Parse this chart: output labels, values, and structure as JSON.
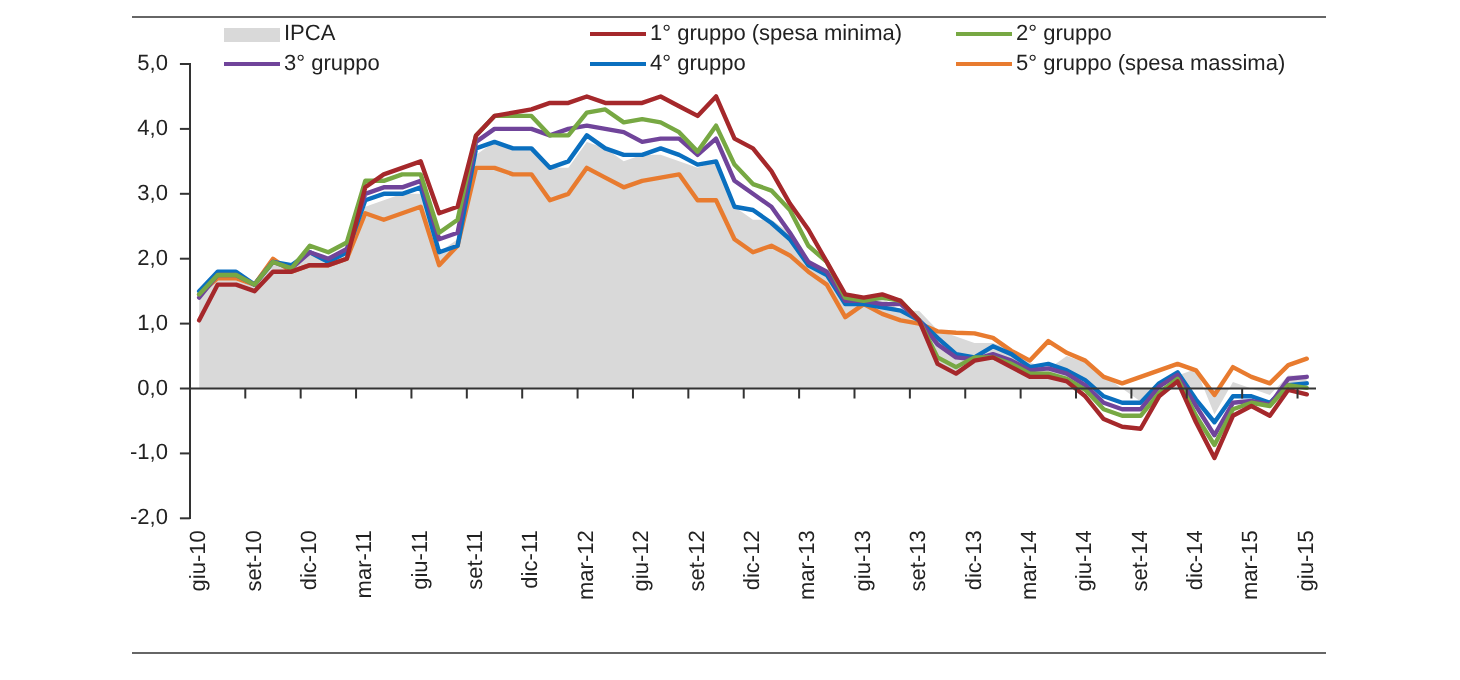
{
  "chart_data": {
    "type": "line",
    "categories": [
      "giu-10",
      null,
      null,
      "set-10",
      null,
      null,
      "dic-10",
      null,
      null,
      "mar-11",
      null,
      null,
      "giu-11",
      null,
      null,
      "set-11",
      null,
      null,
      "dic-11",
      null,
      null,
      "mar-12",
      null,
      null,
      "giu-12",
      null,
      null,
      "set-12",
      null,
      null,
      "dic-12",
      null,
      null,
      "mar-13",
      null,
      null,
      "giu-13",
      null,
      null,
      "set-13",
      null,
      null,
      "dic-13",
      null,
      null,
      "mar-14",
      null,
      null,
      "giu-14",
      null,
      null,
      "set-14",
      null,
      null,
      "dic-14",
      null,
      null,
      "mar-15",
      null,
      null,
      "giu-15"
    ],
    "series": [
      {
        "name": "IPCA",
        "type": "area",
        "color": "#d9d9d9",
        "values": [
          1.5,
          1.7,
          1.7,
          1.6,
          1.9,
          1.9,
          2.1,
          1.9,
          2.1,
          2.8,
          2.9,
          3.0,
          3.0,
          2.1,
          2.3,
          3.6,
          3.8,
          3.7,
          3.7,
          3.4,
          3.4,
          3.8,
          3.7,
          3.5,
          3.6,
          3.6,
          3.5,
          3.4,
          3.5,
          2.8,
          2.6,
          2.6,
          2.4,
          2.0,
          1.8,
          1.3,
          1.3,
          1.4,
          1.2,
          1.2,
          0.9,
          0.8,
          0.7,
          0.7,
          0.6,
          0.4,
          0.3,
          0.5,
          0.4,
          0.2,
          0.0,
          -0.2,
          -0.1,
          0.2,
          0.3,
          -0.4,
          0.1,
          0.0,
          -0.1,
          0.2,
          0.2
        ]
      },
      {
        "name": "1° gruppo (spesa minima)",
        "color": "#a5282b",
        "values": [
          1.05,
          1.6,
          1.6,
          1.5,
          1.8,
          1.8,
          1.9,
          1.9,
          2.0,
          3.1,
          3.3,
          3.4,
          3.5,
          2.7,
          2.8,
          3.9,
          4.2,
          4.25,
          4.3,
          4.4,
          4.4,
          4.5,
          4.4,
          4.4,
          4.4,
          4.5,
          4.35,
          4.2,
          4.5,
          3.85,
          3.7,
          3.35,
          2.85,
          2.45,
          1.95,
          1.45,
          1.4,
          1.45,
          1.35,
          1.05,
          0.38,
          0.23,
          0.43,
          0.48,
          0.33,
          0.18,
          0.18,
          0.11,
          -0.12,
          -0.47,
          -0.59,
          -0.62,
          -0.12,
          0.11,
          -0.52,
          -1.07,
          -0.42,
          -0.27,
          -0.42,
          -0.02,
          -0.09
        ]
      },
      {
        "name": "2° gruppo",
        "color": "#77a843",
        "values": [
          1.45,
          1.75,
          1.75,
          1.6,
          1.95,
          1.85,
          2.2,
          2.1,
          2.25,
          3.2,
          3.2,
          3.3,
          3.3,
          2.4,
          2.6,
          3.9,
          4.2,
          4.2,
          4.2,
          3.9,
          3.9,
          4.25,
          4.3,
          4.1,
          4.15,
          4.1,
          3.95,
          3.65,
          4.05,
          3.45,
          3.15,
          3.05,
          2.75,
          2.2,
          1.95,
          1.4,
          1.35,
          1.4,
          1.35,
          1.05,
          0.48,
          0.33,
          0.48,
          0.48,
          0.38,
          0.23,
          0.23,
          0.15,
          -0.02,
          -0.32,
          -0.42,
          -0.42,
          -0.07,
          0.15,
          -0.42,
          -0.87,
          -0.32,
          -0.22,
          -0.27,
          0.05,
          0.01
        ]
      },
      {
        "name": "3° gruppo",
        "color": "#70449a",
        "values": [
          1.4,
          1.75,
          1.75,
          1.6,
          1.95,
          1.85,
          2.1,
          2.0,
          2.15,
          3.0,
          3.1,
          3.1,
          3.2,
          2.3,
          2.4,
          3.8,
          4.0,
          4.0,
          4.0,
          3.9,
          4.0,
          4.05,
          4.0,
          3.95,
          3.8,
          3.85,
          3.85,
          3.6,
          3.85,
          3.2,
          3.0,
          2.8,
          2.4,
          1.95,
          1.8,
          1.35,
          1.35,
          1.3,
          1.3,
          1.05,
          0.68,
          0.48,
          0.45,
          0.53,
          0.43,
          0.28,
          0.31,
          0.23,
          0.05,
          -0.22,
          -0.32,
          -0.32,
          0.03,
          0.21,
          -0.27,
          -0.72,
          -0.22,
          -0.19,
          -0.25,
          0.15,
          0.18
        ]
      },
      {
        "name": "4° gruppo",
        "color": "#0a6fbf",
        "values": [
          1.5,
          1.8,
          1.8,
          1.6,
          1.95,
          1.9,
          2.1,
          1.95,
          2.1,
          2.9,
          3.0,
          3.0,
          3.1,
          2.1,
          2.2,
          3.7,
          3.8,
          3.7,
          3.7,
          3.4,
          3.5,
          3.9,
          3.7,
          3.6,
          3.6,
          3.7,
          3.6,
          3.45,
          3.5,
          2.8,
          2.75,
          2.55,
          2.3,
          1.9,
          1.75,
          1.3,
          1.3,
          1.25,
          1.2,
          1.05,
          0.78,
          0.53,
          0.48,
          0.65,
          0.53,
          0.33,
          0.38,
          0.28,
          0.13,
          -0.12,
          -0.22,
          -0.22,
          0.08,
          0.25,
          -0.17,
          -0.52,
          -0.12,
          -0.12,
          -0.22,
          0.05,
          0.08
        ]
      },
      {
        "name": "5° gruppo (spesa massima)",
        "color": "#e87b2f",
        "values": [
          1.45,
          1.7,
          1.7,
          1.6,
          2.0,
          1.8,
          1.9,
          1.9,
          2.0,
          2.7,
          2.6,
          2.7,
          2.8,
          1.9,
          2.2,
          3.4,
          3.4,
          3.3,
          3.3,
          2.9,
          3.0,
          3.4,
          3.25,
          3.1,
          3.2,
          3.25,
          3.3,
          2.9,
          2.9,
          2.3,
          2.1,
          2.2,
          2.05,
          1.8,
          1.6,
          1.1,
          1.3,
          1.15,
          1.05,
          1.0,
          0.88,
          0.86,
          0.85,
          0.78,
          0.58,
          0.43,
          0.73,
          0.55,
          0.43,
          0.18,
          0.08,
          0.18,
          0.28,
          0.38,
          0.28,
          -0.1,
          0.33,
          0.18,
          0.08,
          0.36,
          0.46
        ]
      }
    ],
    "ylim": [
      -2,
      5
    ],
    "yticks": [
      {
        "value": 5,
        "label": "5,0"
      },
      {
        "value": 4,
        "label": "4,0"
      },
      {
        "value": 3,
        "label": "3,0"
      },
      {
        "value": 2,
        "label": "2,0"
      },
      {
        "value": 1,
        "label": "1,0"
      },
      {
        "value": 0,
        "label": "0,0"
      },
      {
        "value": -1,
        "label": "-1,0"
      },
      {
        "value": -2,
        "label": "-2,0"
      }
    ],
    "ref_lines": [
      {
        "axis": "y",
        "value": 0,
        "color": "#333333"
      }
    ],
    "grid": false,
    "legend": "top",
    "marker": "none",
    "line_style": "solid"
  }
}
